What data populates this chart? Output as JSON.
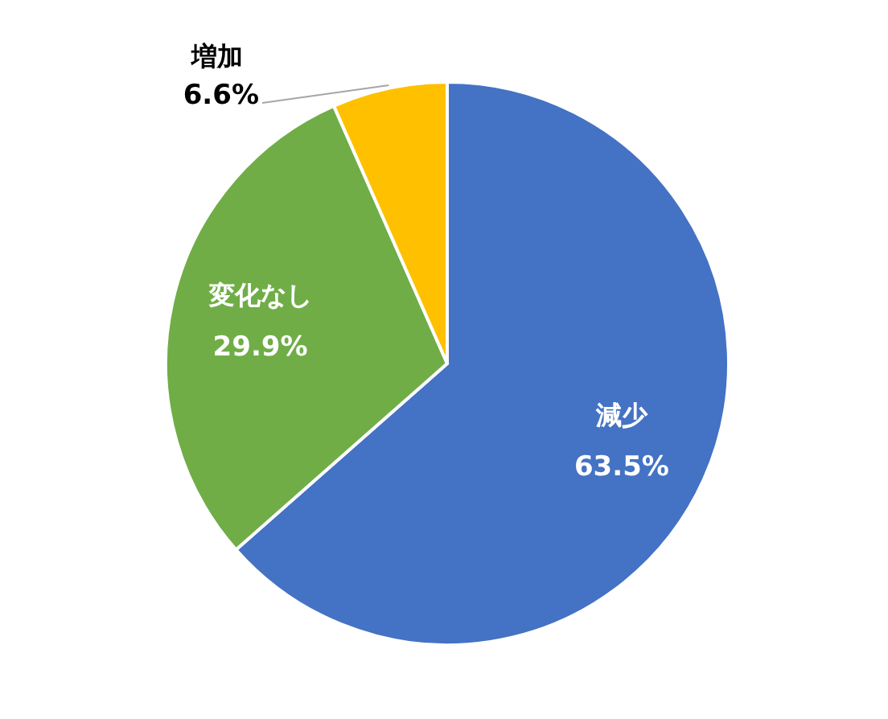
{
  "chart_data": {
    "type": "pie",
    "categories": [
      "減少",
      "変化なし",
      "増加"
    ],
    "values": [
      63.5,
      29.9,
      6.6
    ],
    "colors": [
      "#4472c4",
      "#70ad47",
      "#ffc000"
    ],
    "value_labels": [
      "63.5%",
      "29.9%",
      "6.6%"
    ],
    "legend": false
  }
}
